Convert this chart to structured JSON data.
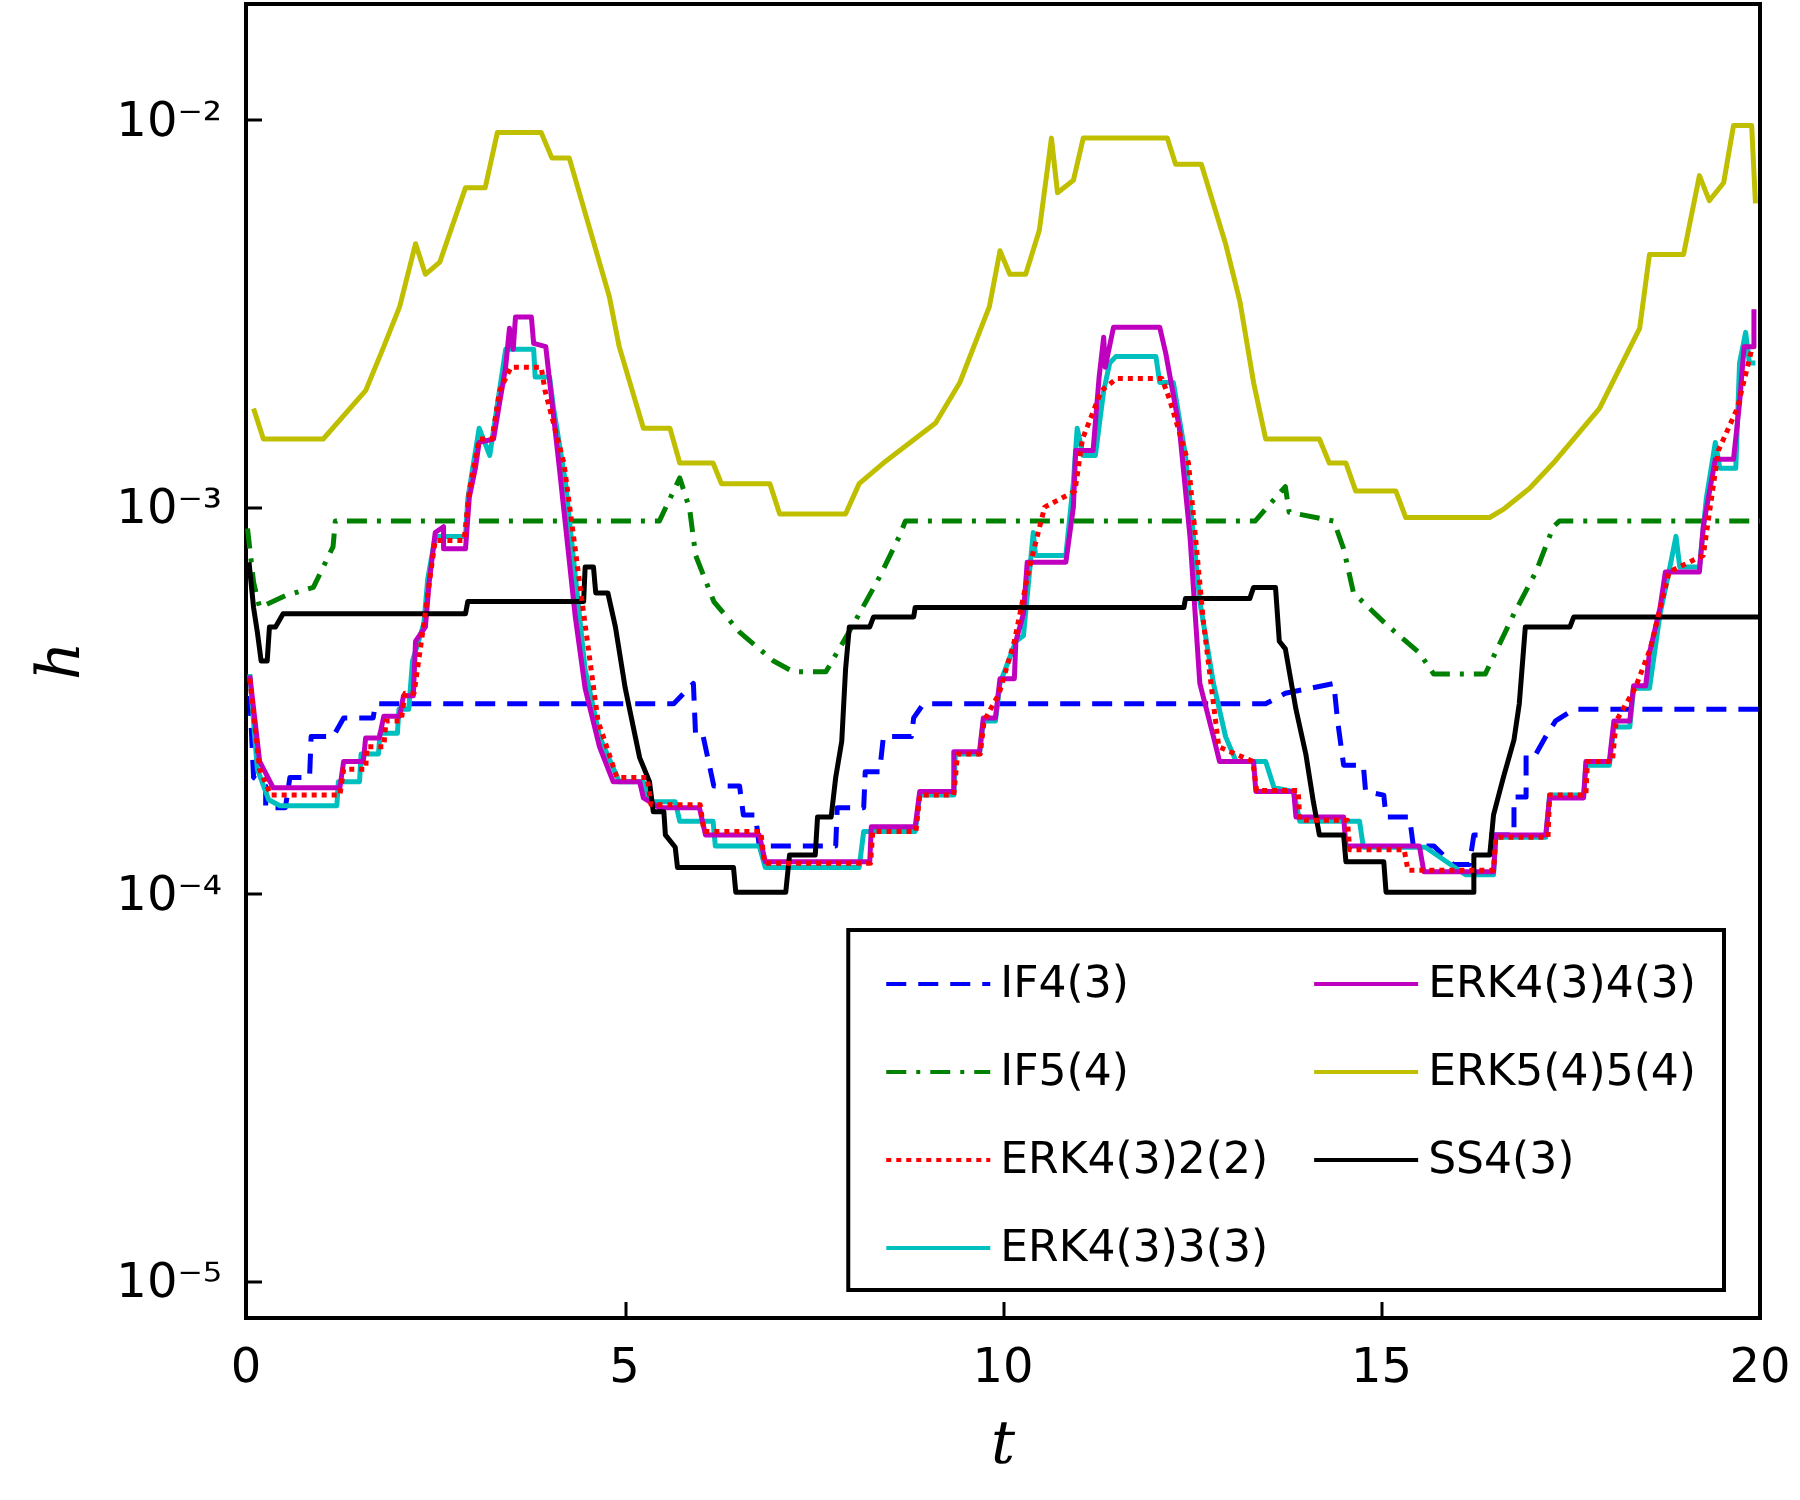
{
  "chart_data": {
    "type": "line",
    "xlabel": "t",
    "ylabel": "h",
    "log": "y",
    "grid": false,
    "legend": "bottom right",
    "marker": "none",
    "xlim": [
      0,
      20
    ],
    "xticks": [
      0,
      5,
      10,
      15,
      20
    ],
    "ylim": [
      8e-06,
      0.02
    ],
    "yticks": [
      {
        "value": 1e-05,
        "label": "10⁻⁵"
      },
      {
        "value": 0.0001,
        "label": "10⁻⁴"
      },
      {
        "value": 0.001,
        "label": "10⁻³"
      },
      {
        "value": 0.01,
        "label": "10⁻²"
      }
    ],
    "series": [
      {
        "name": "IF4(3)",
        "color": "#0000ff",
        "line_style": "dashed",
        "x": [
          0.05,
          0.1,
          0.26,
          0.26,
          0.52,
          0.58,
          0.84,
          0.86,
          1.15,
          1.29,
          1.68,
          1.71,
          5.65,
          5.91,
          5.94,
          6.04,
          6.18,
          6.52,
          6.57,
          6.73,
          6.78,
          7.79,
          7.81,
          8.16,
          8.18,
          8.37,
          8.42,
          8.79,
          8.82,
          8.95,
          13.47,
          13.73,
          14.37,
          14.42,
          14.5,
          14.76,
          14.79,
          15.03,
          15.06,
          15.37,
          15.42,
          15.69,
          15.95,
          16.16,
          16.22,
          16.75,
          16.75,
          16.91,
          16.91,
          17.04,
          17.17,
          17.3,
          17.54,
          20
        ],
        "values": [
          0.000325,
          0.0002,
          0.00019,
          0.000167,
          0.000167,
          0.0002,
          0.0002,
          0.000255,
          0.000255,
          0.000285,
          0.000285,
          0.00031,
          0.00031,
          0.00035,
          0.000255,
          0.000255,
          0.00019,
          0.00019,
          0.00016,
          0.00016,
          0.000133,
          0.000133,
          0.000167,
          0.000167,
          0.000207,
          0.000207,
          0.000255,
          0.000255,
          0.000285,
          0.00031,
          0.00031,
          0.00033,
          0.00035,
          0.00028,
          0.000215,
          0.000215,
          0.000184,
          0.00018,
          0.000158,
          0.000158,
          0.000133,
          0.000133,
          0.000119,
          0.000119,
          0.000142,
          0.000142,
          0.000178,
          0.000178,
          0.00023,
          0.00023,
          0.000255,
          0.00028,
          0.0003,
          0.0003
        ]
      },
      {
        "name": "IF5(4)",
        "color": "#008000",
        "line_style": "dashdot",
        "x": [
          0.02,
          0.1,
          0.18,
          0.52,
          0.89,
          1.15,
          1.18,
          5.46,
          5.73,
          5.86,
          5.94,
          6.18,
          6.52,
          6.97,
          7.23,
          7.66,
          8.03,
          8.37,
          8.63,
          8.71,
          13.33,
          13.73,
          13.78,
          14.37,
          14.5,
          14.63,
          15.05,
          15.5,
          15.69,
          16.37,
          16.75,
          17.04,
          17.27,
          17.35,
          20
        ],
        "values": [
          0.00088,
          0.00064,
          0.00055,
          0.00059,
          0.00062,
          0.00079,
          0.00092,
          0.00092,
          0.00119,
          0.00099,
          0.00075,
          0.00057,
          0.000475,
          0.0004,
          0.000375,
          0.000375,
          0.0005,
          0.00066,
          0.00084,
          0.00092,
          0.00092,
          0.00113,
          0.00097,
          0.00092,
          0.00078,
          0.0006,
          0.0005,
          0.00042,
          0.00037,
          0.00037,
          0.00053,
          0.00068,
          0.00089,
          0.00092,
          0.00092
        ]
      },
      {
        "name": "ERK4(3)2(2)",
        "color": "#ff0000",
        "line_style": "dotted",
        "x": [
          0.05,
          0.18,
          0.33,
          1.24,
          1.29,
          1.58,
          1.6,
          1.82,
          1.85,
          2.05,
          2.1,
          2.22,
          2.35,
          2.45,
          2.5,
          2.88,
          2.95,
          3.08,
          3.25,
          3.35,
          3.5,
          3.9,
          3.95,
          4.2,
          4.45,
          4.65,
          4.9,
          5.3,
          5.35,
          6.0,
          6.05,
          6.8,
          6.85,
          8.25,
          8.28,
          8.85,
          8.9,
          9.35,
          9.4,
          9.7,
          9.75,
          9.95,
          10.15,
          10.35,
          10.55,
          10.95,
          11.05,
          11.3,
          11.5,
          12.1,
          12.2,
          12.45,
          12.65,
          12.85,
          13.3,
          13.35,
          13.9,
          13.92,
          14.55,
          14.58,
          15.3,
          15.35,
          16.48,
          16.51,
          17.2,
          17.22,
          17.7,
          17.72,
          18.05,
          18.1,
          18.35,
          18.55,
          18.8,
          19.25,
          19.45,
          19.7,
          19.9
        ],
        "values": [
          0.00036,
          0.00021,
          0.00018,
          0.00018,
          0.00021,
          0.00021,
          0.00024,
          0.00024,
          0.00028,
          0.00028,
          0.00033,
          0.00033,
          0.0005,
          0.0007,
          0.00082,
          0.00082,
          0.0011,
          0.0015,
          0.0015,
          0.002,
          0.0023,
          0.0023,
          0.002,
          0.0013,
          0.00055,
          0.00028,
          0.0002,
          0.0002,
          0.00017,
          0.00017,
          0.000145,
          0.000145,
          0.00012,
          0.00012,
          0.000145,
          0.000145,
          0.00018,
          0.00018,
          0.00023,
          0.00023,
          0.00028,
          0.00033,
          0.00045,
          0.0007,
          0.001,
          0.0011,
          0.0015,
          0.002,
          0.00215,
          0.00215,
          0.0019,
          0.0013,
          0.0005,
          0.00024,
          0.00022,
          0.000185,
          0.000185,
          0.000155,
          0.000155,
          0.00013,
          0.00013,
          0.000115,
          0.000115,
          0.00014,
          0.00014,
          0.00018,
          0.00018,
          0.00022,
          0.00022,
          0.00028,
          0.00034,
          0.00043,
          0.00068,
          0.00075,
          0.0014,
          0.0018,
          0.0026
        ]
      },
      {
        "name": "ERK4(3)3(3)",
        "color": "#00bfbf",
        "line_style": "solid",
        "x": [
          0.05,
          0.15,
          0.3,
          0.45,
          1.2,
          1.22,
          1.5,
          1.52,
          1.75,
          1.77,
          2.0,
          2.02,
          2.15,
          2.2,
          2.35,
          2.4,
          2.5,
          2.9,
          2.93,
          3.08,
          3.22,
          3.43,
          3.59,
          3.8,
          3.82,
          4.01,
          4.06,
          4.22,
          4.48,
          4.67,
          4.93,
          5.25,
          5.33,
          5.67,
          5.73,
          6.17,
          6.2,
          6.78,
          6.86,
          8.1,
          8.16,
          8.84,
          8.9,
          9.35,
          9.37,
          9.69,
          9.74,
          9.9,
          9.96,
          10.17,
          10.27,
          10.4,
          10.43,
          10.83,
          10.93,
          10.98,
          11.06,
          11.22,
          11.33,
          11.41,
          11.49,
          12.02,
          12.07,
          12.25,
          12.41,
          12.6,
          12.78,
          12.94,
          13.08,
          13.47,
          13.58,
          13.84,
          13.92,
          14.71,
          14.76,
          15.58,
          16.11,
          16.48,
          16.51,
          17.17,
          17.22,
          17.67,
          17.7,
          18.01,
          18.07,
          18.28,
          18.33,
          18.54,
          18.68,
          18.81,
          18.89,
          18.94,
          19.2,
          19.29,
          19.41,
          19.47,
          19.68,
          19.73,
          19.81,
          19.86,
          19.94
        ],
        "values": [
          0.00037,
          0.00021,
          0.000175,
          0.000169,
          0.000169,
          0.000195,
          0.000195,
          0.00023,
          0.00023,
          0.00026,
          0.00026,
          0.0003,
          0.0003,
          0.0004,
          0.0005,
          0.00065,
          0.00084,
          0.00084,
          0.00105,
          0.0016,
          0.00136,
          0.00256,
          0.00256,
          0.00256,
          0.00217,
          0.00217,
          0.00182,
          0.00116,
          0.00038,
          0.000255,
          0.000195,
          0.000195,
          0.000173,
          0.000173,
          0.000154,
          0.000154,
          0.000133,
          0.000133,
          0.000117,
          0.000117,
          0.000145,
          0.000145,
          0.00018,
          0.00018,
          0.00023,
          0.00023,
          0.00028,
          0.00028,
          0.00035,
          0.00045,
          0.000465,
          0.00086,
          0.00075,
          0.00075,
          0.00116,
          0.0016,
          0.00136,
          0.00136,
          0.002,
          0.00236,
          0.00245,
          0.00245,
          0.0021,
          0.0021,
          0.00136,
          0.00057,
          0.00035,
          0.000255,
          0.00022,
          0.00022,
          0.000188,
          0.000184,
          0.000154,
          0.000154,
          0.000132,
          0.000132,
          0.000112,
          0.000112,
          0.00014,
          0.00014,
          0.00018,
          0.00018,
          0.000215,
          0.000215,
          0.00027,
          0.00027,
          0.00034,
          0.00034,
          0.00053,
          0.0007,
          0.00084,
          0.0007,
          0.0007,
          0.00105,
          0.00147,
          0.00126,
          0.00126,
          0.00236,
          0.00283,
          0.00236,
          0.00236
        ]
      },
      {
        "name": "ERK4(3)4(3)",
        "color": "#bf00bf",
        "line_style": "solid",
        "x": [
          0.05,
          0.18,
          0.36,
          1.24,
          1.29,
          1.55,
          1.58,
          1.76,
          1.82,
          2.03,
          2.08,
          2.21,
          2.24,
          2.37,
          2.42,
          2.5,
          2.61,
          2.61,
          2.9,
          2.95,
          3.03,
          3.08,
          3.27,
          3.35,
          3.43,
          3.48,
          3.53,
          3.56,
          3.77,
          3.8,
          3.96,
          4.14,
          4.35,
          4.48,
          4.67,
          4.85,
          5.2,
          5.25,
          5.46,
          5.99,
          6.07,
          6.78,
          6.86,
          8.24,
          8.26,
          8.84,
          8.9,
          9.35,
          9.35,
          9.69,
          9.74,
          9.9,
          9.96,
          10.15,
          10.17,
          10.27,
          10.32,
          10.83,
          10.93,
          10.96,
          11.19,
          11.22,
          11.27,
          11.33,
          11.35,
          11.46,
          12.07,
          12.15,
          12.33,
          12.47,
          12.6,
          12.78,
          12.86,
          13.31,
          13.34,
          13.84,
          13.87,
          14.5,
          14.53,
          15.5,
          15.56,
          16.48,
          16.51,
          17.17,
          17.22,
          17.67,
          17.7,
          18.01,
          18.07,
          18.28,
          18.33,
          18.49,
          18.54,
          18.68,
          18.75,
          19.2,
          19.25,
          19.41,
          19.65,
          19.73,
          19.79,
          19.92,
          19.92
        ],
        "values": [
          0.000367,
          0.00022,
          0.000188,
          0.000188,
          0.00022,
          0.00022,
          0.000253,
          0.000253,
          0.000288,
          0.000288,
          0.000325,
          0.000325,
          0.00045,
          0.00049,
          0.00064,
          0.00086,
          0.00089,
          0.00078,
          0.00078,
          0.00106,
          0.00126,
          0.00147,
          0.0015,
          0.00186,
          0.0023,
          0.0029,
          0.00256,
          0.0031,
          0.0031,
          0.00265,
          0.0026,
          0.00126,
          0.00052,
          0.00034,
          0.00024,
          0.000195,
          0.000195,
          0.000177,
          0.000167,
          0.000167,
          0.000142,
          0.000142,
          0.000121,
          0.000121,
          0.000149,
          0.000149,
          0.000184,
          0.000184,
          0.000233,
          0.000233,
          0.000285,
          0.000285,
          0.00036,
          0.00036,
          0.00045,
          0.00053,
          0.00072,
          0.00072,
          0.001,
          0.0014,
          0.0014,
          0.00165,
          0.00217,
          0.00275,
          0.0023,
          0.00292,
          0.00292,
          0.0025,
          0.0016,
          0.00084,
          0.00035,
          0.000255,
          0.00022,
          0.00022,
          0.000184,
          0.000184,
          0.000158,
          0.000158,
          0.000133,
          0.000133,
          0.000114,
          0.000114,
          0.000142,
          0.000142,
          0.000177,
          0.000177,
          0.00022,
          0.00022,
          0.00028,
          0.00028,
          0.000345,
          0.000345,
          0.00042,
          0.00055,
          0.00068,
          0.00068,
          0.00089,
          0.00133,
          0.00133,
          0.00186,
          0.0026,
          0.0026,
          0.00325
        ]
      },
      {
        "name": "ERK5(4)5(4)",
        "color": "#bfbf00",
        "line_style": "solid",
        "x": [
          0.1,
          0.23,
          1.02,
          1.58,
          1.82,
          2.03,
          2.24,
          2.37,
          2.56,
          2.9,
          3.16,
          3.32,
          3.9,
          4.04,
          4.27,
          4.8,
          4.93,
          5.25,
          5.6,
          5.73,
          6.17,
          6.28,
          6.92,
          7.05,
          7.92,
          8.1,
          8.42,
          9.11,
          9.43,
          9.82,
          9.96,
          10.09,
          10.3,
          10.48,
          10.64,
          10.72,
          10.93,
          11.06,
          12.17,
          12.28,
          12.62,
          12.94,
          13.13,
          13.31,
          13.47,
          14.18,
          14.31,
          14.53,
          14.66,
          15.19,
          15.32,
          16.43,
          16.62,
          16.96,
          17.27,
          17.88,
          18.41,
          18.54,
          18.99,
          19.2,
          19.33,
          19.52,
          19.65,
          19.89,
          19.94
        ],
        "values": [
          0.0018,
          0.0015,
          0.0015,
          0.002,
          0.0026,
          0.0033,
          0.0048,
          0.004,
          0.0043,
          0.0067,
          0.0067,
          0.0093,
          0.0093,
          0.008,
          0.008,
          0.0035,
          0.0026,
          0.0016,
          0.0016,
          0.0013,
          0.0013,
          0.00115,
          0.00115,
          0.00096,
          0.00096,
          0.00115,
          0.0013,
          0.00165,
          0.0021,
          0.0033,
          0.0046,
          0.004,
          0.004,
          0.0052,
          0.009,
          0.0065,
          0.007,
          0.009,
          0.009,
          0.0077,
          0.0077,
          0.0048,
          0.0034,
          0.0021,
          0.0015,
          0.0015,
          0.0013,
          0.0013,
          0.0011,
          0.0011,
          0.00094,
          0.00094,
          0.00099,
          0.00112,
          0.0013,
          0.0018,
          0.0029,
          0.0045,
          0.0045,
          0.0072,
          0.0062,
          0.0069,
          0.0097,
          0.0097,
          0.0061
        ]
      },
      {
        "name": "SS4(3)",
        "color": "#000000",
        "line_style": "solid",
        "x": [
          0.04,
          0.1,
          0.15,
          0.2,
          0.28,
          0.31,
          0.39,
          0.49,
          2.9,
          2.93,
          4.46,
          4.48,
          4.59,
          4.62,
          4.78,
          4.88,
          5.01,
          5.2,
          5.33,
          5.38,
          5.52,
          5.54,
          5.67,
          5.7,
          6.44,
          6.47,
          7.13,
          7.18,
          7.52,
          7.55,
          7.73,
          7.79,
          7.87,
          7.92,
          7.97,
          8.24,
          8.29,
          8.82,
          8.84,
          12.39,
          12.41,
          13.26,
          13.31,
          13.6,
          13.65,
          13.73,
          13.87,
          14.0,
          14.1,
          14.18,
          14.5,
          14.53,
          15.03,
          15.06,
          16.22,
          16.22,
          16.43,
          16.48,
          16.61,
          16.75,
          16.82,
          16.9,
          17.49,
          17.54,
          20
        ],
        "values": [
          0.00072,
          0.00055,
          0.000475,
          0.0004,
          0.0004,
          0.00049,
          0.00049,
          0.00053,
          0.00053,
          0.00057,
          0.00057,
          0.0007,
          0.0007,
          0.0006,
          0.0006,
          0.00049,
          0.00034,
          0.000225,
          0.000195,
          0.000163,
          0.000163,
          0.000142,
          0.000132,
          0.000117,
          0.000117,
          0.000101,
          0.000101,
          0.000126,
          0.000126,
          0.000158,
          0.000158,
          0.0002,
          0.000248,
          0.00038,
          0.00049,
          0.00049,
          0.00052,
          0.00052,
          0.00055,
          0.00055,
          0.00058,
          0.00058,
          0.00062,
          0.00062,
          0.00045,
          0.00043,
          0.0003,
          0.00023,
          0.000173,
          0.000142,
          0.000142,
          0.000121,
          0.000121,
          0.000101,
          0.000101,
          0.000126,
          0.000126,
          0.00016,
          0.0002,
          0.00025,
          0.00031,
          0.00049,
          0.00049,
          0.00052,
          0.00052
        ]
      }
    ]
  }
}
